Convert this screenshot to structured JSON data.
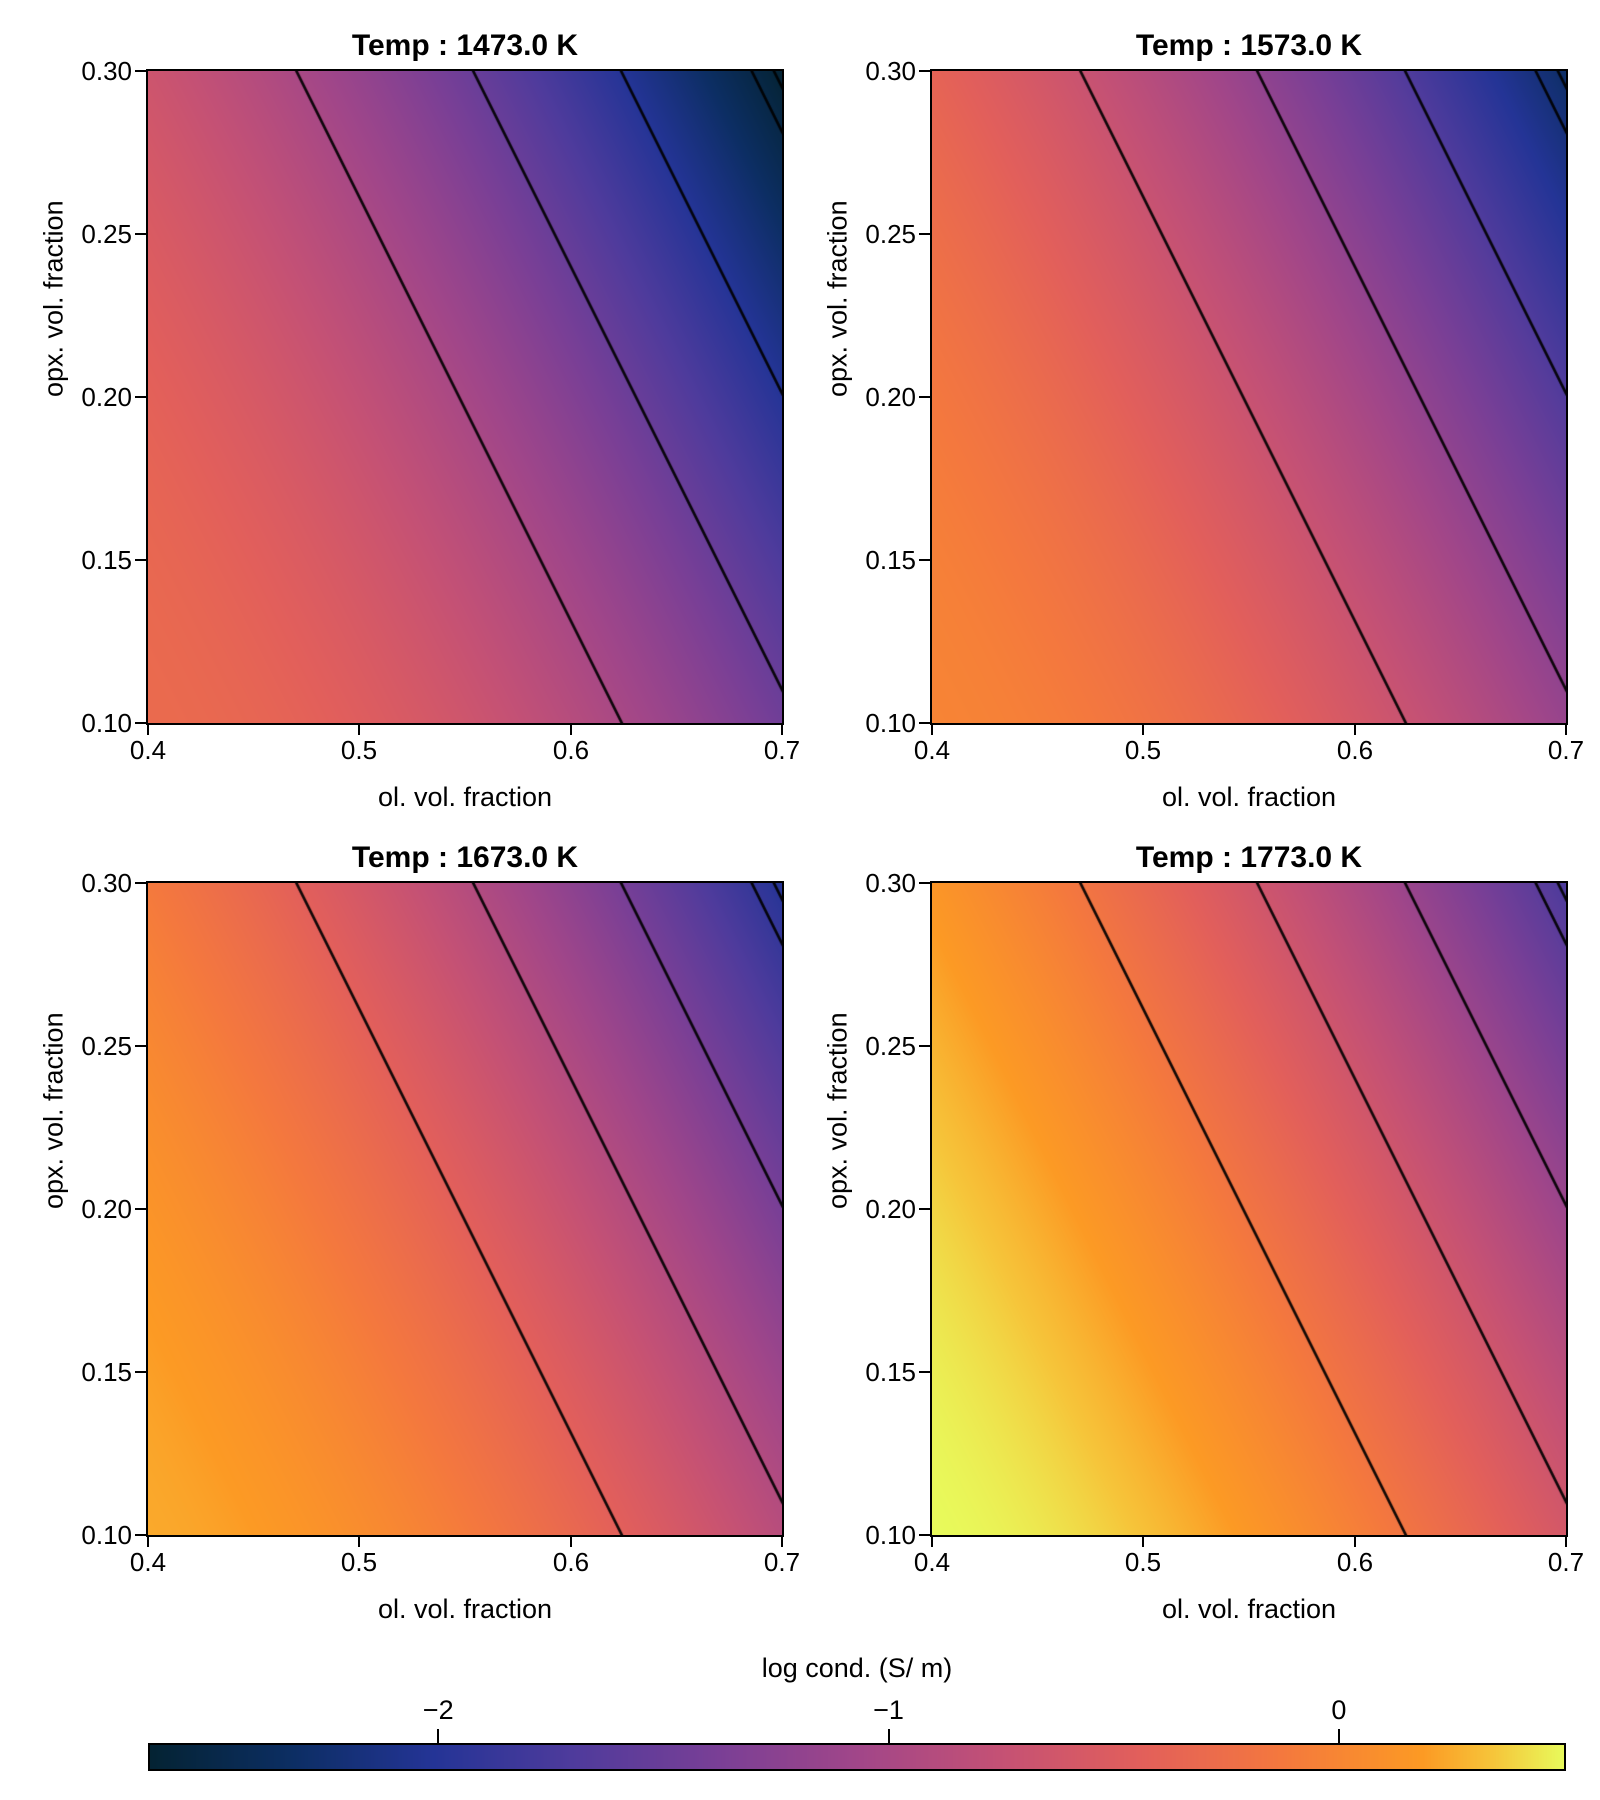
{
  "figure": {
    "background": "#ffffff"
  },
  "subplots": [
    {
      "title": "Temp : 1473.0 K",
      "xlabel": "ol. vol. fraction",
      "ylabel": "opx. vol. fraction",
      "xticks": [
        "0.4",
        "0.5",
        "0.6",
        "0.7"
      ],
      "yticks": [
        "0.30",
        "0.25",
        "0.20",
        "0.15",
        "0.10"
      ]
    },
    {
      "title": "Temp : 1573.0 K",
      "xlabel": "ol. vol. fraction",
      "ylabel": "opx. vol. fraction",
      "xticks": [
        "0.4",
        "0.5",
        "0.6",
        "0.7"
      ],
      "yticks": [
        "0.30",
        "0.25",
        "0.20",
        "0.15",
        "0.10"
      ]
    },
    {
      "title": "Temp : 1673.0 K",
      "xlabel": "ol. vol. fraction",
      "ylabel": "opx. vol. fraction",
      "xticks": [
        "0.4",
        "0.5",
        "0.6",
        "0.7"
      ],
      "yticks": [
        "0.30",
        "0.25",
        "0.20",
        "0.15",
        "0.10"
      ]
    },
    {
      "title": "Temp : 1773.0 K",
      "xlabel": "ol. vol. fraction",
      "ylabel": "opx. vol. fraction",
      "xticks": [
        "0.4",
        "0.5",
        "0.6",
        "0.7"
      ],
      "yticks": [
        "0.30",
        "0.25",
        "0.20",
        "0.15",
        "0.10"
      ]
    }
  ],
  "colorbar": {
    "label": "log cond. (S/ m)",
    "tick_labels": [
      "−2",
      "−1",
      "0"
    ],
    "tick_values": [
      -2,
      -1,
      0
    ],
    "vmin": -2.64,
    "vmax": 0.5,
    "colormap": "cmocean-thermal",
    "stops": [
      [
        0.0,
        "#042333"
      ],
      [
        0.1,
        "#0C2E63"
      ],
      [
        0.2,
        "#243496"
      ],
      [
        0.3,
        "#4F3B9C"
      ],
      [
        0.4,
        "#793F96"
      ],
      [
        0.5,
        "#A14689"
      ],
      [
        0.6,
        "#C45175"
      ],
      [
        0.7,
        "#E25F5B"
      ],
      [
        0.8,
        "#F4783E"
      ],
      [
        0.9,
        "#FC9A24"
      ],
      [
        0.95,
        "#F6C53A"
      ],
      [
        1.0,
        "#E8FA5B"
      ]
    ]
  },
  "field_model": {
    "u": "(ol - 0.4) + 0.77*(opx - 0.1)",
    "u_max": 0.454,
    "t_power": 1.7,
    "contour_lines_u": [
      0.2242,
      0.308,
      0.3781,
      0.44,
      0.4505
    ]
  },
  "chart_data": [
    {
      "type": "heatmap",
      "title": "Temp : 1473.0 K",
      "temperature_K": 1473.0,
      "x": {
        "label": "ol. vol. fraction",
        "range": [
          0.4,
          0.7
        ],
        "ticks": [
          0.4,
          0.5,
          0.6,
          0.7
        ]
      },
      "y": {
        "label": "opx. vol. fraction",
        "range": [
          0.1,
          0.3
        ],
        "ticks": [
          0.3,
          0.25,
          0.2,
          0.15,
          0.1
        ]
      },
      "z": {
        "label": "log cond. (S/ m)",
        "corners": {
          "bottom_left": -0.3,
          "top_left": -0.67,
          "bottom_right": -1.45,
          "top_right": -2.63
        }
      },
      "contour_levels": [
        -2.5,
        -2.0,
        -1.5,
        -1.0,
        -0.5,
        0.0
      ]
    },
    {
      "type": "heatmap",
      "title": "Temp : 1573.0 K",
      "temperature_K": 1573.0,
      "x": {
        "label": "ol. vol. fraction",
        "range": [
          0.4,
          0.7
        ],
        "ticks": [
          0.4,
          0.5,
          0.6,
          0.7
        ]
      },
      "y": {
        "label": "opx. vol. fraction",
        "range": [
          0.1,
          0.3
        ],
        "ticks": [
          0.3,
          0.25,
          0.2,
          0.15,
          0.1
        ]
      },
      "z": {
        "label": "log cond. (S/ m)",
        "corners": {
          "bottom_left": -0.02,
          "top_left": -0.38,
          "bottom_right": -1.15,
          "top_right": -2.3
        }
      },
      "contour_levels": [
        -2.5,
        -2.0,
        -1.5,
        -1.0,
        -0.5,
        0.0
      ]
    },
    {
      "type": "heatmap",
      "title": "Temp : 1673.0 K",
      "temperature_K": 1673.0,
      "x": {
        "label": "ol. vol. fraction",
        "range": [
          0.4,
          0.7
        ],
        "ticks": [
          0.4,
          0.5,
          0.6,
          0.7
        ]
      },
      "y": {
        "label": "opx. vol. fraction",
        "range": [
          0.1,
          0.3
        ],
        "ticks": [
          0.3,
          0.25,
          0.2,
          0.15,
          0.1
        ]
      },
      "z": {
        "label": "log cond. (S/ m)",
        "corners": {
          "bottom_left": 0.24,
          "top_left": -0.12,
          "bottom_right": -0.87,
          "top_right": -2.0
        }
      },
      "contour_levels": [
        -2.5,
        -2.0,
        -1.5,
        -1.0,
        -0.5,
        0.0
      ]
    },
    {
      "type": "heatmap",
      "title": "Temp : 1773.0 K",
      "temperature_K": 1773.0,
      "x": {
        "label": "ol. vol. fraction",
        "range": [
          0.4,
          0.7
        ],
        "ticks": [
          0.4,
          0.5,
          0.6,
          0.7
        ]
      },
      "y": {
        "label": "opx. vol. fraction",
        "range": [
          0.1,
          0.3
        ],
        "ticks": [
          0.3,
          0.25,
          0.2,
          0.15,
          0.1
        ]
      },
      "z": {
        "label": "log cond. (S/ m)",
        "corners": {
          "bottom_left": 0.5,
          "top_left": 0.15,
          "bottom_right": -0.6,
          "top_right": -1.72
        }
      },
      "contour_levels": [
        -2.5,
        -2.0,
        -1.5,
        -1.0,
        -0.5,
        0.0
      ]
    }
  ]
}
